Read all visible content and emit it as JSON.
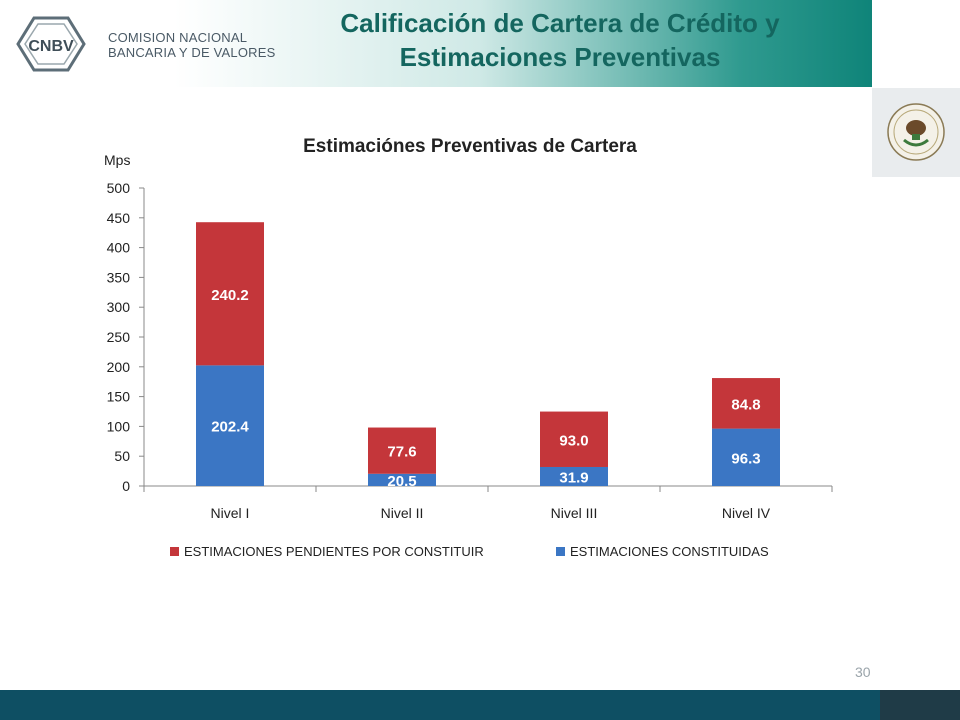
{
  "header": {
    "title_line1": "Calificación de Cartera de Crédito y",
    "title_line2": "Estimaciones Preventivas",
    "logo_abbrev": "CNBV",
    "logo_line1": "COMISION NACIONAL",
    "logo_line2": "BANCARIA Y DE VALORES",
    "seal_icon": "mexico-coat-of-arms-icon"
  },
  "footer": {
    "page_number": "30"
  },
  "colors": {
    "constituidas": "#3b76c4",
    "pendientes": "#c4363a",
    "header_text": "#14665f",
    "footer": "#0e4f63"
  },
  "chart_data": {
    "type": "bar",
    "stacked": true,
    "title": "Estimaciónes Preventivas de Cartera",
    "ylabel": "Mps",
    "xlabel": "",
    "categories": [
      "Nivel I",
      "Nivel II",
      "Nivel III",
      "Nivel IV"
    ],
    "ylim": [
      0,
      500
    ],
    "yticks": [
      0,
      50,
      100,
      150,
      200,
      250,
      300,
      350,
      400,
      450,
      500
    ],
    "series": [
      {
        "name": "ESTIMACIONES CONSTITUIDAS",
        "values": [
          202.4,
          20.5,
          31.9,
          96.3
        ],
        "labels": [
          "202.4",
          "20.5",
          "31.9",
          "96.3"
        ]
      },
      {
        "name": "ESTIMACIONES PENDIENTES POR CONSTITUIR",
        "values": [
          240.2,
          77.6,
          93.0,
          84.8
        ],
        "labels": [
          "240.2",
          "77.6",
          "93.0",
          "84.8"
        ]
      }
    ],
    "legend": "bottom",
    "grid": false
  }
}
